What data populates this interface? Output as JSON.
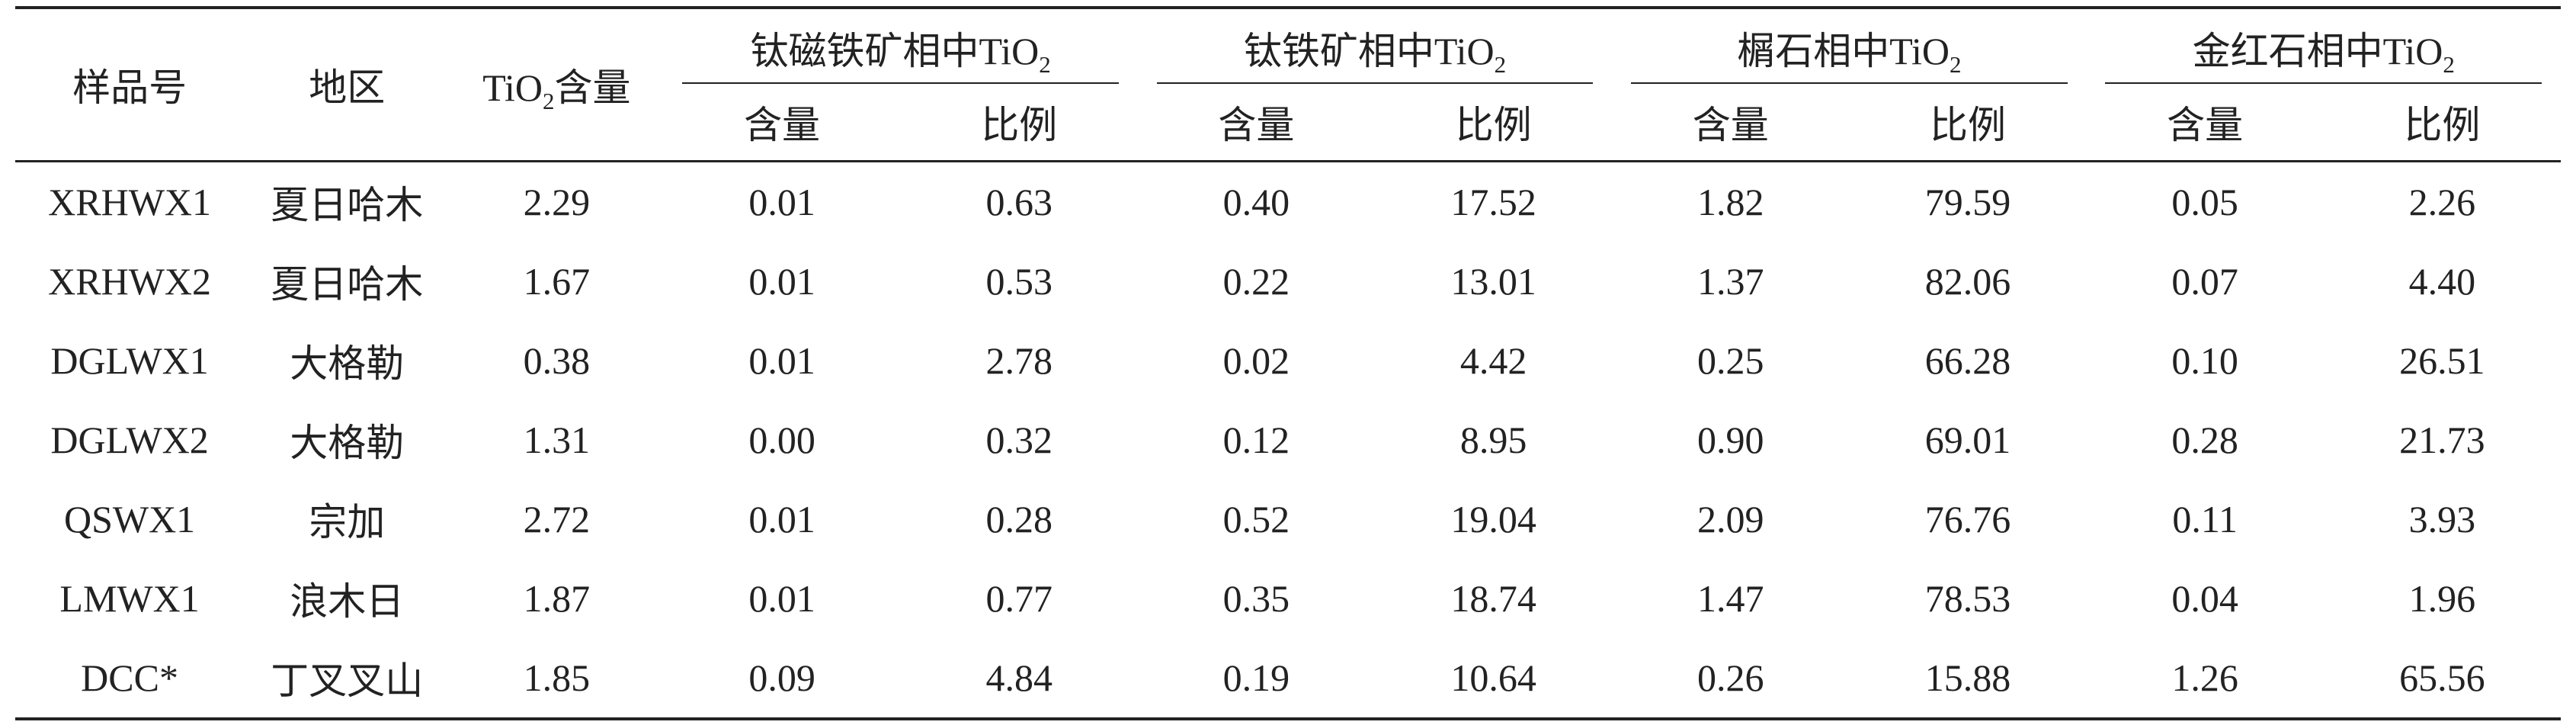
{
  "table": {
    "headers": {
      "sample_id": "样品号",
      "region": "地区",
      "tio2_prefix": "TiO",
      "tio2_sub": "2",
      "tio2_suffix": "含量",
      "groups": [
        {
          "prefix": "钛磁铁矿相中TiO",
          "sub": "2"
        },
        {
          "prefix": "钛铁矿相中TiO",
          "sub": "2"
        },
        {
          "prefix": "榍石相中TiO",
          "sub": "2"
        },
        {
          "prefix": "金红石相中TiO",
          "sub": "2"
        }
      ],
      "content": "含量",
      "ratio": "比例"
    },
    "rows": [
      {
        "id": "XRHWX1",
        "region": "夏日哈木",
        "tio2": "2.29",
        "vals": [
          "0.01",
          "0.63",
          "0.40",
          "17.52",
          "1.82",
          "79.59",
          "0.05",
          "2.26"
        ]
      },
      {
        "id": "XRHWX2",
        "region": "夏日哈木",
        "tio2": "1.67",
        "vals": [
          "0.01",
          "0.53",
          "0.22",
          "13.01",
          "1.37",
          "82.06",
          "0.07",
          "4.40"
        ]
      },
      {
        "id": "DGLWX1",
        "region": "大格勒",
        "tio2": "0.38",
        "vals": [
          "0.01",
          "2.78",
          "0.02",
          "4.42",
          "0.25",
          "66.28",
          "0.10",
          "26.51"
        ]
      },
      {
        "id": "DGLWX2",
        "region": "大格勒",
        "tio2": "1.31",
        "vals": [
          "0.00",
          "0.32",
          "0.12",
          "8.95",
          "0.90",
          "69.01",
          "0.28",
          "21.73"
        ]
      },
      {
        "id": "QSWX1",
        "region": "宗加",
        "tio2": "2.72",
        "vals": [
          "0.01",
          "0.28",
          "0.52",
          "19.04",
          "2.09",
          "76.76",
          "0.11",
          "3.93"
        ]
      },
      {
        "id": "LMWX1",
        "region": "浪木日",
        "tio2": "1.87",
        "vals": [
          "0.01",
          "0.77",
          "0.35",
          "18.74",
          "1.47",
          "78.53",
          "0.04",
          "1.96"
        ]
      },
      {
        "id": "DCC*",
        "region": "丁叉叉山",
        "tio2": "1.85",
        "vals": [
          "0.09",
          "4.84",
          "0.19",
          "10.64",
          "0.26",
          "15.88",
          "1.26",
          "65.56"
        ]
      }
    ]
  }
}
